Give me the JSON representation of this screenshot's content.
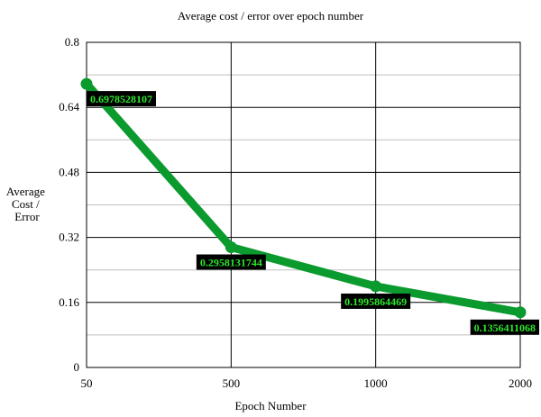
{
  "chart_data": {
    "type": "line",
    "title": "Average cost / error over epoch number",
    "xlabel": "Epoch Number",
    "ylabel": [
      "Average",
      "Cost /",
      "Error"
    ],
    "categories": [
      "50",
      "500",
      "1000",
      "2000"
    ],
    "series": [
      {
        "name": "",
        "values": [
          0.6978528107,
          0.2958131744,
          0.1995864469,
          0.1356411068
        ],
        "labels": [
          "0.6978528107",
          "0.2958131744",
          "0.1995864469",
          "0.1356411068"
        ]
      }
    ],
    "ylim": [
      0,
      0.8
    ],
    "yticks": [
      "0",
      "0.16",
      "0.32",
      "0.48",
      "0.64",
      "0.8"
    ],
    "grid": true,
    "legend": "none",
    "colors": {
      "line": "#0a9a2d",
      "label_bg": "#000000",
      "label_text": "#2de82d",
      "grid": "#000000",
      "minor_grid": "#bfbfbf"
    }
  }
}
